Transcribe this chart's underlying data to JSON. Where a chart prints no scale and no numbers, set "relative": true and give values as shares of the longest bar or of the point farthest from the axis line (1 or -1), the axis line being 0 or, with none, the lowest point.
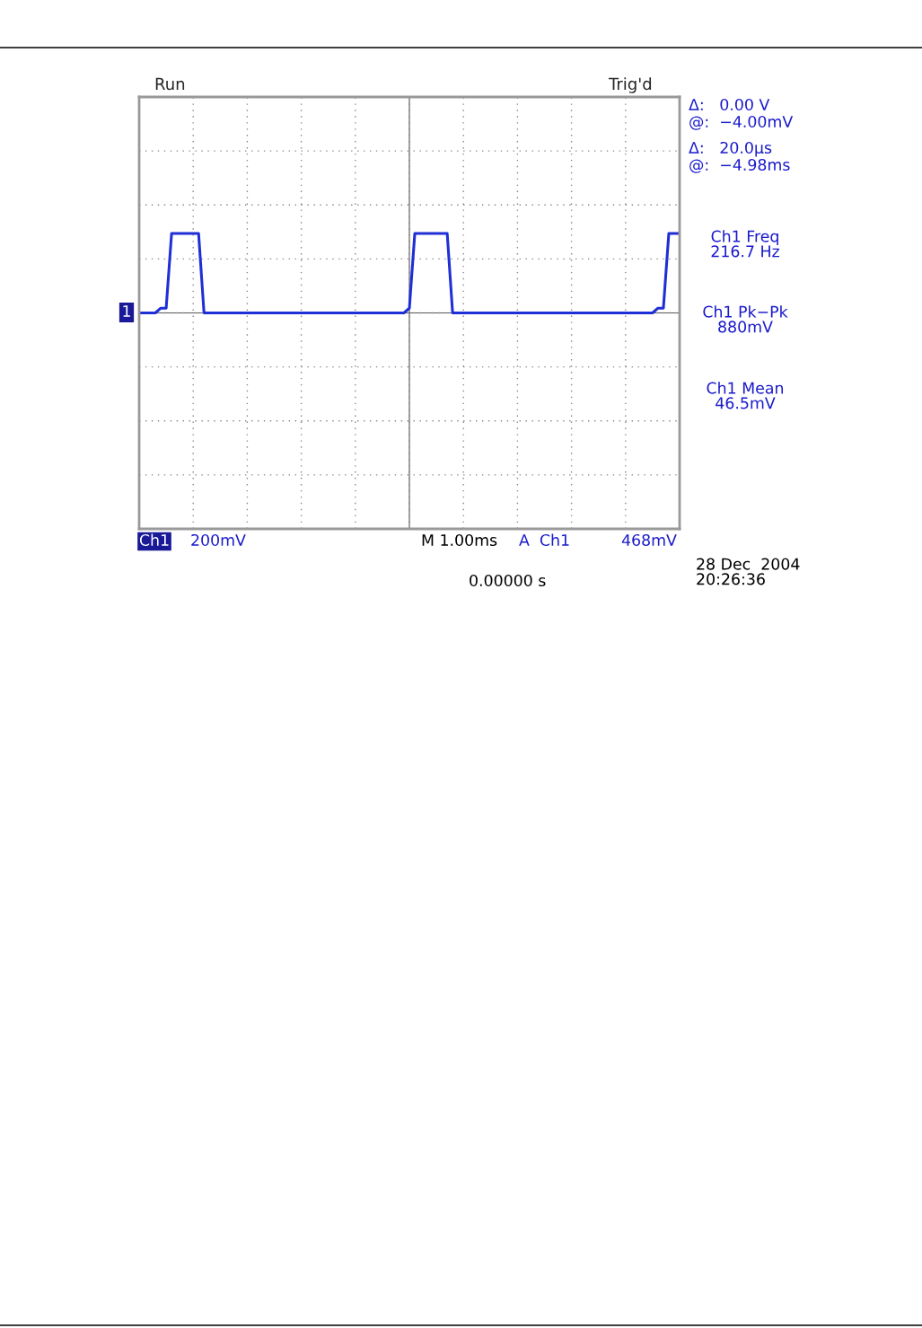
{
  "chart_data": {
    "type": "line",
    "title": "Run",
    "subtitle": "Trig'd",
    "relative": true,
    "categories": [
      null,
      null,
      null,
      null,
      null,
      null,
      null,
      null,
      null,
      null,
      null,
      null,
      null,
      null,
      null,
      null,
      null,
      null,
      null,
      null,
      null,
      null,
      null,
      null,
      null,
      null,
      null,
      null,
      null,
      null,
      null,
      null,
      null,
      null,
      null,
      null,
      null,
      null,
      null,
      null,
      null,
      null,
      null,
      null,
      null,
      null,
      null,
      null,
      null,
      null,
      null,
      null,
      null,
      null,
      null,
      null,
      null,
      null,
      null,
      null,
      null,
      null,
      null,
      null,
      null,
      null,
      null,
      null,
      null,
      null,
      null,
      null,
      null,
      null,
      null,
      null,
      null,
      null,
      null,
      null,
      null,
      null,
      null,
      null,
      null,
      null,
      null,
      null,
      null,
      null,
      null,
      null,
      null,
      null,
      null,
      null,
      null,
      null,
      null,
      null,
      null
    ],
    "series": [
      {
        "color": "#1f2fd6",
        "values": [
          0,
          0,
          0,
          0,
          0.06,
          0.06,
          1,
          1,
          1,
          1,
          1,
          1,
          0,
          0,
          0,
          0,
          0,
          0,
          0,
          0,
          0,
          0,
          0,
          0,
          0,
          0,
          0,
          0,
          0,
          0,
          0,
          0,
          0,
          0,
          0,
          0,
          0,
          0,
          0,
          0,
          0,
          0,
          0,
          0,
          0,
          0,
          0,
          0,
          0,
          0,
          0.06,
          1,
          1,
          1,
          1,
          1,
          1,
          1,
          0,
          0,
          0,
          0,
          0,
          0,
          0,
          0,
          0,
          0,
          0,
          0,
          0,
          0,
          0,
          0,
          0,
          0,
          0,
          0,
          0,
          0,
          0,
          0,
          0,
          0,
          0,
          0,
          0,
          0,
          0,
          0,
          0,
          0,
          0,
          0,
          0,
          0,
          0.06,
          0.06,
          1,
          1,
          1
        ]
      }
    ],
    "grid": true,
    "annotations": [
      "Δ:   0.00 V",
      "@:  −4.00mV",
      "Δ:   20.0µs",
      "@:  −4.98ms",
      "Ch1 Freq\n216.7 Hz",
      "Ch1 Pk−Pk\n880mV",
      "Ch1 Mean\n46.5mV",
      "Ch1",
      "200mV",
      "M 1.00ms",
      "A  Ch1",
      "468mV",
      "0.00000 s",
      "28 Dec  2004\n20:26:36",
      "1"
    ]
  }
}
